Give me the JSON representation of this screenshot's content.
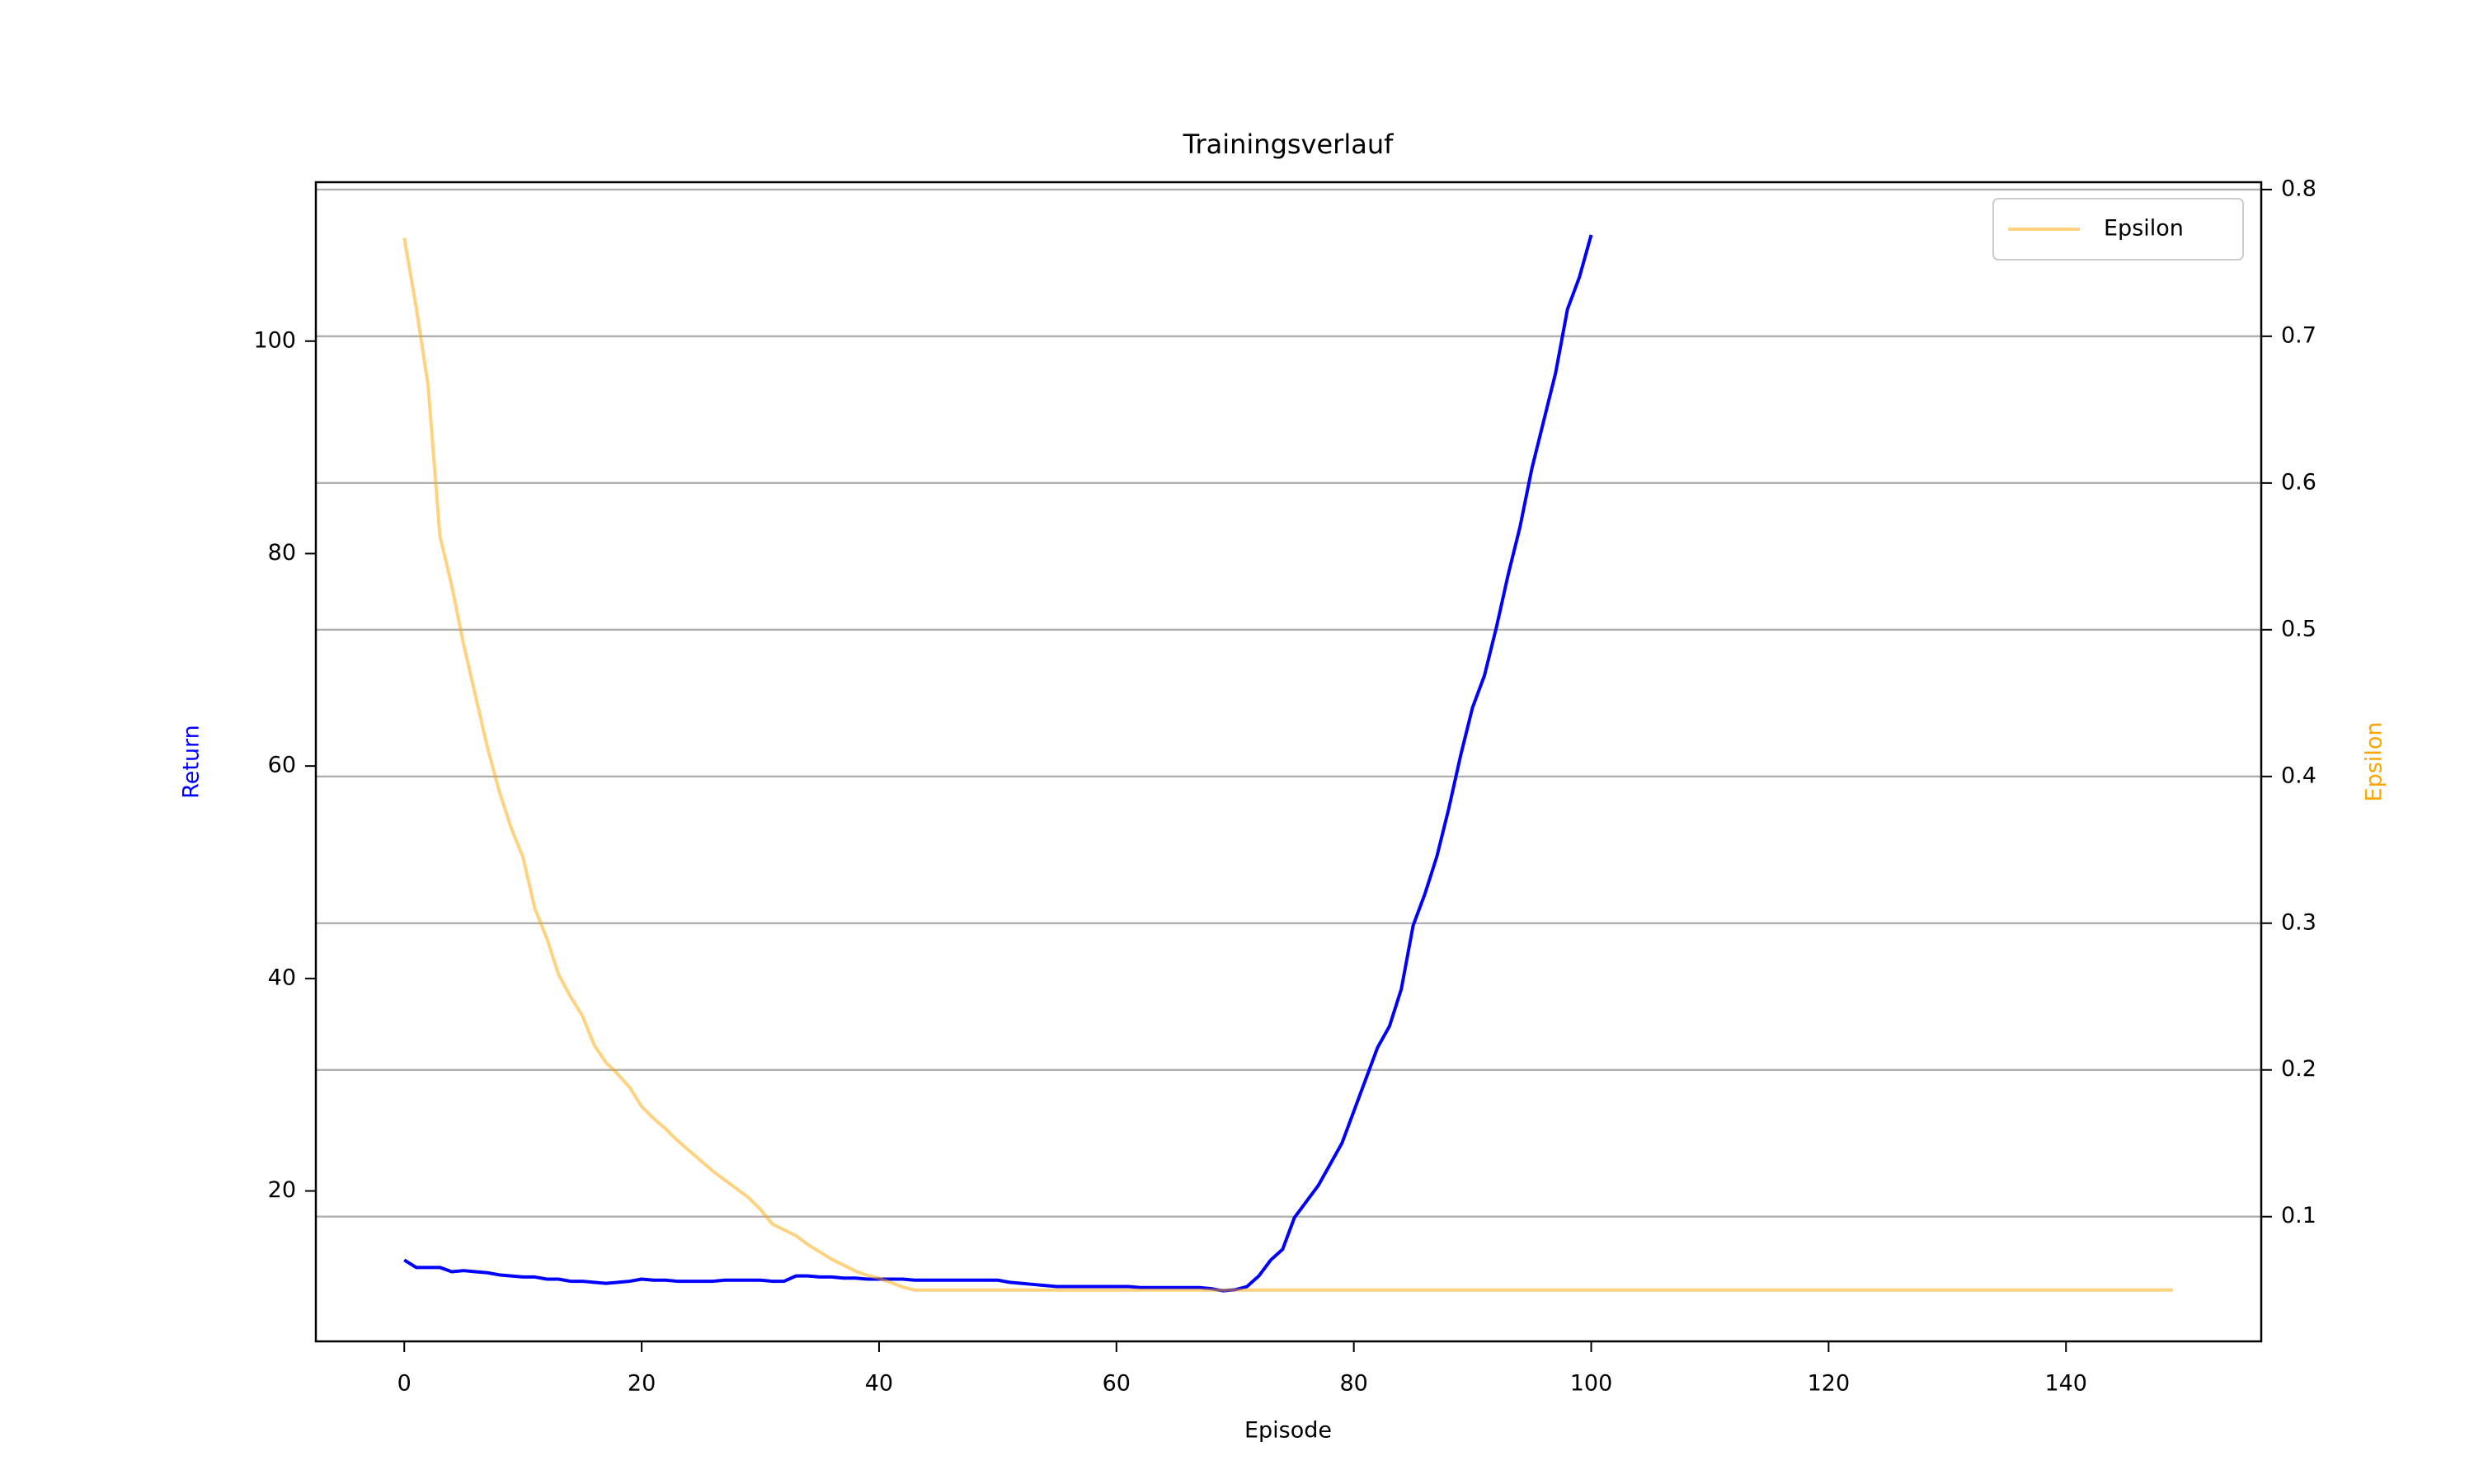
{
  "chart_data": {
    "type": "line",
    "title": "Trainingsverlauf",
    "xlabel": "Episode",
    "ylabel": "Return",
    "y2label": "Epsilon",
    "xlim": [
      -7.45,
      156.45
    ],
    "xticks": [
      0,
      20,
      40,
      60,
      80,
      100,
      120,
      140
    ],
    "ylim": [
      5.84,
      114.96
    ],
    "yticks": [
      20,
      40,
      60,
      80,
      100
    ],
    "y2lim": [
      0.015,
      0.805
    ],
    "y2ticks": [
      0.1,
      0.2,
      0.3,
      0.4,
      0.5,
      0.6,
      0.7,
      0.8
    ],
    "grid": "y2",
    "legend": "upper right",
    "series": [
      {
        "name": "Return",
        "color": "#0000ff",
        "axis": "y",
        "in_legend": false,
        "x": [
          0,
          1,
          2,
          3,
          4,
          5,
          6,
          7,
          8,
          9,
          10,
          11,
          12,
          13,
          14,
          15,
          16,
          17,
          18,
          19,
          20,
          21,
          22,
          23,
          24,
          25,
          26,
          27,
          28,
          29,
          30,
          31,
          32,
          33,
          34,
          35,
          36,
          37,
          38,
          39,
          40,
          41,
          42,
          43,
          44,
          45,
          46,
          47,
          48,
          49,
          50,
          51,
          52,
          53,
          54,
          55,
          56,
          57,
          58,
          59,
          60,
          61,
          62,
          63,
          64,
          65,
          66,
          67,
          68,
          69,
          70,
          71,
          72,
          73,
          74,
          75,
          76,
          77,
          78,
          79,
          80,
          81,
          82,
          83,
          84,
          85,
          86,
          87,
          88,
          89,
          90,
          91,
          92,
          93,
          94,
          95,
          96,
          97,
          98,
          99,
          100
        ],
        "values": [
          13.5,
          12.8,
          12.8,
          12.8,
          12.4,
          12.5,
          12.4,
          12.3,
          12.1,
          12.0,
          11.9,
          11.9,
          11.7,
          11.7,
          11.5,
          11.5,
          11.4,
          11.3,
          11.4,
          11.5,
          11.7,
          11.6,
          11.6,
          11.5,
          11.5,
          11.5,
          11.5,
          11.6,
          11.6,
          11.6,
          11.6,
          11.5,
          11.5,
          12.0,
          12.0,
          11.9,
          11.9,
          11.8,
          11.8,
          11.7,
          11.7,
          11.7,
          11.7,
          11.6,
          11.6,
          11.6,
          11.6,
          11.6,
          11.6,
          11.6,
          11.6,
          11.4,
          11.3,
          11.2,
          11.1,
          11.0,
          11.0,
          11.0,
          11.0,
          11.0,
          11.0,
          11.0,
          10.9,
          10.9,
          10.9,
          10.9,
          10.9,
          10.9,
          10.8,
          10.6,
          10.7,
          11.0,
          12.0,
          13.5,
          14.5,
          17.5,
          19.0,
          20.5,
          22.5,
          24.5,
          27.5,
          30.5,
          33.5,
          35.5,
          39.0,
          45.0,
          48.0,
          51.5,
          56.0,
          61.0,
          65.5,
          68.5,
          73.0,
          78.0,
          82.5,
          88.0,
          92.5,
          97.0,
          103.0,
          106.0,
          110.0
        ]
      },
      {
        "name": "Epsilon",
        "color": "#ffa500",
        "alpha": 0.5,
        "axis": "y2",
        "in_legend": true,
        "x": [
          0,
          1,
          2,
          3,
          4,
          5,
          6,
          7,
          8,
          9,
          10,
          11,
          12,
          13,
          14,
          15,
          16,
          17,
          18,
          19,
          20,
          21,
          22,
          23,
          24,
          25,
          26,
          27,
          28,
          29,
          30,
          31,
          32,
          33,
          34,
          35,
          36,
          37,
          38,
          39,
          40,
          41,
          42,
          43,
          44,
          45,
          46,
          47,
          48,
          49,
          50,
          51,
          52,
          53,
          54,
          55,
          56,
          57,
          58,
          59,
          60,
          61,
          62,
          63,
          64,
          65,
          66,
          67,
          68,
          69,
          70,
          71,
          72,
          73,
          74,
          75,
          76,
          77,
          78,
          79,
          80,
          81,
          82,
          83,
          84,
          85,
          86,
          87,
          88,
          89,
          90,
          91,
          92,
          93,
          94,
          95,
          96,
          97,
          98,
          99,
          100,
          101,
          102,
          103,
          104,
          105,
          106,
          107,
          108,
          109,
          110,
          111,
          112,
          113,
          114,
          115,
          116,
          117,
          118,
          119,
          120,
          121,
          122,
          123,
          124,
          125,
          126,
          127,
          128,
          129,
          130,
          131,
          132,
          133,
          134,
          135,
          136,
          137,
          138,
          139,
          140,
          141,
          142,
          143,
          144,
          145,
          146,
          147,
          148,
          149
        ],
        "values": [
          0.767,
          0.72,
          0.667,
          0.564,
          0.53,
          0.49,
          0.455,
          0.42,
          0.39,
          0.365,
          0.345,
          0.31,
          0.29,
          0.265,
          0.25,
          0.237,
          0.217,
          0.205,
          0.197,
          0.188,
          0.175,
          0.167,
          0.16,
          0.152,
          0.145,
          0.138,
          0.131,
          0.125,
          0.119,
          0.113,
          0.105,
          0.095,
          0.091,
          0.087,
          0.081,
          0.076,
          0.071,
          0.067,
          0.063,
          0.06,
          0.058,
          0.055,
          0.052,
          0.05,
          0.05,
          0.05,
          0.05,
          0.05,
          0.05,
          0.05,
          0.05,
          0.05,
          0.05,
          0.05,
          0.05,
          0.05,
          0.05,
          0.05,
          0.05,
          0.05,
          0.05,
          0.05,
          0.05,
          0.05,
          0.05,
          0.05,
          0.05,
          0.05,
          0.05,
          0.05,
          0.05,
          0.05,
          0.05,
          0.05,
          0.05,
          0.05,
          0.05,
          0.05,
          0.05,
          0.05,
          0.05,
          0.05,
          0.05,
          0.05,
          0.05,
          0.05,
          0.05,
          0.05,
          0.05,
          0.05,
          0.05,
          0.05,
          0.05,
          0.05,
          0.05,
          0.05,
          0.05,
          0.05,
          0.05,
          0.05,
          0.05,
          0.05,
          0.05,
          0.05,
          0.05,
          0.05,
          0.05,
          0.05,
          0.05,
          0.05,
          0.05,
          0.05,
          0.05,
          0.05,
          0.05,
          0.05,
          0.05,
          0.05,
          0.05,
          0.05,
          0.05,
          0.05,
          0.05,
          0.05,
          0.05,
          0.05,
          0.05,
          0.05,
          0.05,
          0.05,
          0.05,
          0.05,
          0.05,
          0.05,
          0.05,
          0.05,
          0.05,
          0.05,
          0.05,
          0.05,
          0.05,
          0.05,
          0.05,
          0.05,
          0.05,
          0.05,
          0.05,
          0.05,
          0.05,
          0.05
        ]
      }
    ]
  }
}
